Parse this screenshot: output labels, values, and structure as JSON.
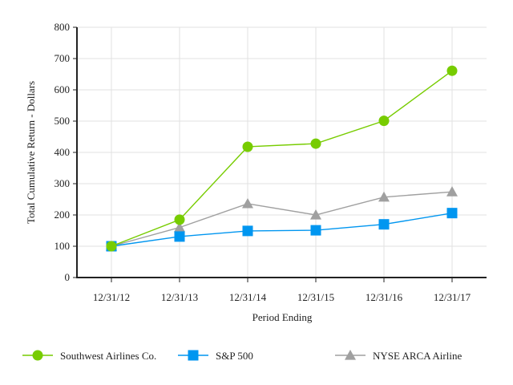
{
  "chart_data": {
    "type": "line",
    "title": "",
    "xlabel": "Period Ending",
    "ylabel": "Total Cumulative Return - Dollars",
    "ylim": [
      0,
      800
    ],
    "yticks": [
      0,
      100,
      200,
      300,
      400,
      500,
      600,
      700,
      800
    ],
    "grid": true,
    "legend_position": "bottom",
    "categories": [
      "12/31/12",
      "12/31/13",
      "12/31/14",
      "12/31/15",
      "12/31/16",
      "12/31/17"
    ],
    "series": [
      {
        "name": "Southwest Airlines Co.",
        "color": "#77cc00",
        "marker": "circle",
        "values": [
          100,
          185,
          418,
          428,
          501,
          661
        ]
      },
      {
        "name": "S&P 500",
        "color": "#0096f0",
        "marker": "square",
        "values": [
          100,
          131,
          149,
          151,
          170,
          206
        ]
      },
      {
        "name": "NYSE ARCA Airline",
        "color": "#a0a0a0",
        "marker": "triangle",
        "values": [
          100,
          160,
          236,
          200,
          257,
          274
        ]
      }
    ]
  }
}
